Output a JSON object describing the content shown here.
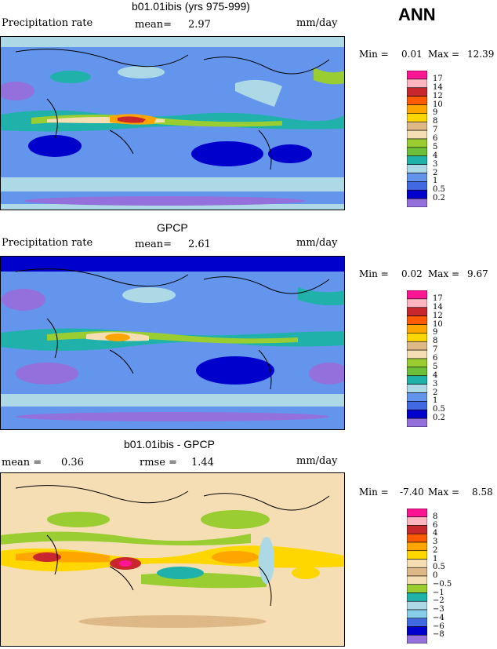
{
  "season": "ANN",
  "panels": [
    {
      "title": "b01.01ibis (yrs 975-999)",
      "field": "Precipitation rate",
      "stat1_label": "mean=",
      "stat1_value": "2.97",
      "stat2_label": "",
      "stat2_value": "",
      "units": "mm/day",
      "min_label": "Min =",
      "min_value": "0.01",
      "max_label": "Max =",
      "max_value": "12.39"
    },
    {
      "title": "GPCP",
      "field": "Precipitation rate",
      "stat1_label": "mean=",
      "stat1_value": "2.61",
      "stat2_label": "",
      "stat2_value": "",
      "units": "mm/day",
      "min_label": "Min =",
      "min_value": "0.02",
      "max_label": "Max =",
      "max_value": "9.67"
    },
    {
      "title": "b01.01ibis - GPCP",
      "field": "",
      "stat1_label": "mean =",
      "stat1_value": "0.36",
      "stat2_label": "rmse =",
      "stat2_value": "1.44",
      "units": "mm/day",
      "min_label": "Min =",
      "min_value": "-7.40",
      "max_label": "Max =",
      "max_value": "8.58"
    }
  ],
  "chart_data": [
    {
      "type": "heatmap",
      "title": "b01.01ibis (yrs 975-999)",
      "units": "mm/day",
      "levels": [
        "17",
        "14",
        "12",
        "10",
        "9",
        "8",
        "7",
        "6",
        "5",
        "4",
        "3",
        "2",
        "1",
        "0.5",
        "0.2"
      ],
      "colors": [
        "#ff1493",
        "#ffb6c1",
        "#c8282d",
        "#ff5a00",
        "#ffa500",
        "#ffd700",
        "#deb887",
        "#f5deb3",
        "#9acd32",
        "#6bbf3a",
        "#20b2aa",
        "#add8e6",
        "#6495ed",
        "#4169e1",
        "#0000cd",
        "#9370db"
      ],
      "mean": 2.97,
      "min": 0.01,
      "max": 12.39
    },
    {
      "type": "heatmap",
      "title": "GPCP",
      "units": "mm/day",
      "levels": [
        "17",
        "14",
        "12",
        "10",
        "9",
        "8",
        "7",
        "6",
        "5",
        "4",
        "3",
        "2",
        "1",
        "0.5",
        "0.2"
      ],
      "colors": [
        "#ff1493",
        "#ffb6c1",
        "#c8282d",
        "#ff5a00",
        "#ffa500",
        "#ffd700",
        "#deb887",
        "#f5deb3",
        "#9acd32",
        "#6bbf3a",
        "#20b2aa",
        "#add8e6",
        "#6495ed",
        "#4169e1",
        "#0000cd",
        "#9370db"
      ],
      "mean": 2.61,
      "min": 0.02,
      "max": 9.67
    },
    {
      "type": "heatmap",
      "title": "b01.01ibis - GPCP",
      "units": "mm/day",
      "levels": [
        "8",
        "6",
        "4",
        "3",
        "2",
        "1",
        "0.5",
        "0",
        "−0.5",
        "−1",
        "−2",
        "−3",
        "−4",
        "−6",
        "−8"
      ],
      "colors": [
        "#ff1493",
        "#ffb6c1",
        "#c8282d",
        "#ff5a00",
        "#ffa500",
        "#ffd700",
        "#f5deb3",
        "#deb887",
        "#f5deb3",
        "#9acd32",
        "#20b2aa",
        "#add8e6",
        "#87ceeb",
        "#4169e1",
        "#0000cd",
        "#9370db"
      ],
      "mean": 0.36,
      "rmse": 1.44,
      "min": -7.4,
      "max": 8.58
    }
  ]
}
